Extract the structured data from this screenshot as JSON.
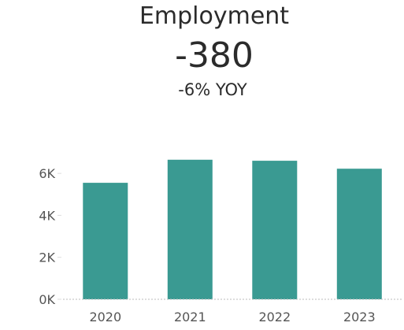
{
  "kpi": {
    "title": "Employment",
    "value": "-380",
    "change": "-6% YOY"
  },
  "chart_data": {
    "type": "bar",
    "categories": [
      "2020",
      "2021",
      "2022",
      "2023"
    ],
    "values": [
      5550,
      6650,
      6600,
      6220
    ],
    "ylim": [
      0,
      6500
    ],
    "yticks": [
      0,
      2000,
      4000,
      6000
    ],
    "ytick_labels": [
      "0K",
      "2K",
      "4K",
      "6K"
    ],
    "bar_color": "#3a9a92",
    "grid": false
  }
}
